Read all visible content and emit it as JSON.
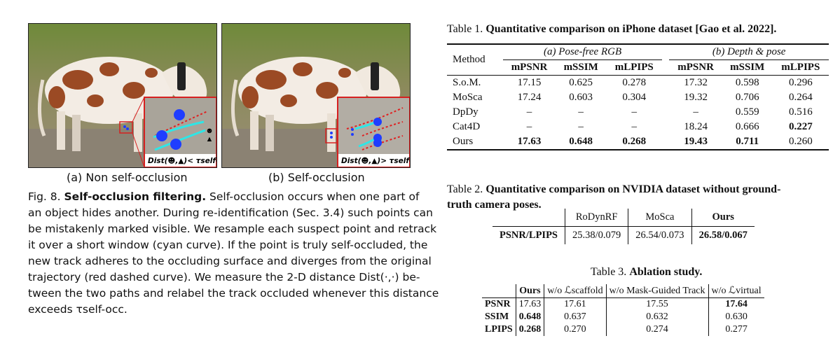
{
  "figure": {
    "subcaption_a": "(a) Non self-occlusion",
    "subcaption_b": "(b) Self-occlusion",
    "inset_a_formula": "Dist(☻,▲)< τself-occ",
    "inset_b_formula": "Dist(☻,▲)> τself-occ",
    "caption_label": "Fig. 8.",
    "caption_title": "Self-occlusion filtering.",
    "caption_lines": [
      "Self-occlusion occurs when one part of",
      "an object hides another. During re-identification (Sec. 3.4) such points can",
      "be mistakenly marked visible. We resample each suspect point and retrack",
      "it over a short window (cyan curve). If the point is truly self-occluded, the",
      "new track adheres to the occluding surface and diverges from the original",
      "trajectory (red dashed curve). We measure the 2-D distance Dist(·,·) be-",
      "tween the two paths and relabel the track occluded whenever this distance",
      "exceeds τself-occ."
    ],
    "colors": {
      "cyan": "#2ee6e6",
      "dot_blue": "#1f3dff",
      "red_dash": "#e02020",
      "inset_border": "#d62020"
    }
  },
  "table1": {
    "label": "Table 1.",
    "title": "Quantitative comparison on iPhone dataset [Gao et al. 2022].",
    "method_header": "Method",
    "group_a": "(a) Pose-free RGB",
    "group_b": "(b) Depth & pose",
    "metrics": [
      "mPSNR",
      "mSSIM",
      "mLPIPS",
      "mPSNR",
      "mSSIM",
      "mLPIPS"
    ],
    "rows": [
      {
        "method": "S.o.M.",
        "values": [
          "17.15",
          "0.625",
          "0.278",
          "17.32",
          "0.598",
          "0.296"
        ],
        "bold": []
      },
      {
        "method": "MoSca",
        "values": [
          "17.24",
          "0.603",
          "0.304",
          "19.32",
          "0.706",
          "0.264"
        ],
        "bold": []
      },
      {
        "method": "DpDy",
        "values": [
          "–",
          "–",
          "–",
          "–",
          "0.559",
          "0.516"
        ],
        "bold": []
      },
      {
        "method": "Cat4D",
        "values": [
          "–",
          "–",
          "–",
          "18.24",
          "0.666",
          "0.227"
        ],
        "bold": [
          5
        ]
      },
      {
        "method": "Ours",
        "values": [
          "17.63",
          "0.648",
          "0.268",
          "19.43",
          "0.711",
          "0.260"
        ],
        "bold": [
          0,
          1,
          2,
          3,
          4
        ]
      }
    ]
  },
  "table2": {
    "label": "Table 2.",
    "title_line1": "Quantitative comparison on NVIDIA dataset without ground-",
    "title_line2": "truth camera poses.",
    "headers": [
      "",
      "RoDynRF",
      "MoSca",
      "Ours"
    ],
    "row_label": "PSNR/LPIPS",
    "values": [
      "25.38/0.079",
      "26.54/0.073",
      "26.58/0.067"
    ]
  },
  "table3": {
    "label": "Table 3.",
    "title": "Ablation study.",
    "headers": [
      "",
      "Ours",
      "w/o ℒscaffold",
      "w/o Mask-Guided Track",
      "w/o ℒvirtual"
    ],
    "rows": [
      {
        "label": "PSNR",
        "values": [
          "17.63",
          "17.61",
          "17.55",
          "17.64"
        ],
        "bold": [
          3
        ]
      },
      {
        "label": "SSIM",
        "values": [
          "0.648",
          "0.637",
          "0.632",
          "0.630"
        ],
        "bold": [
          0
        ]
      },
      {
        "label": "LPIPS",
        "values": [
          "0.268",
          "0.270",
          "0.274",
          "0.277"
        ],
        "bold": [
          0
        ]
      }
    ]
  }
}
